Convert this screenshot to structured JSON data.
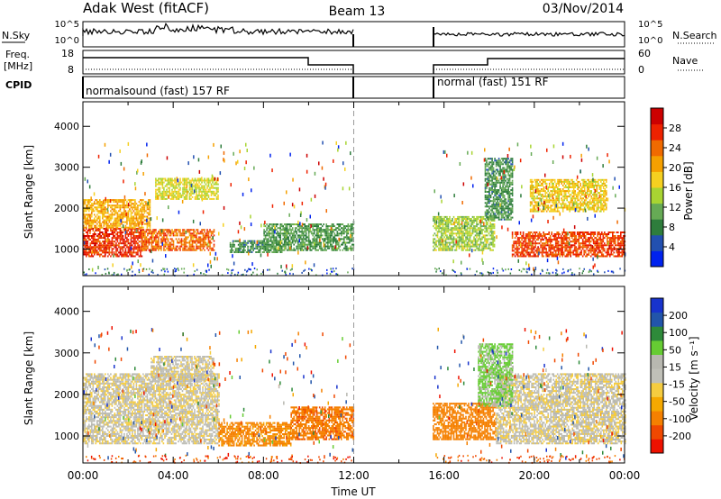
{
  "header": {
    "station": "Adak West (fitACF)",
    "beam": "Beam 13",
    "date": "03/Nov/2014"
  },
  "summary_panels": {
    "nsky_label": "N.Sky",
    "nsky_ticks": [
      "10^5",
      "10^0"
    ],
    "nsearch_label": "N.Search",
    "nsearch_ticks": [
      "10^5",
      "10^0"
    ],
    "freq_label": "Freq.",
    "freq_unit": "[MHz]",
    "freq_ticks": [
      "18",
      "8"
    ],
    "nave_label": "Nave",
    "nave_ticks": [
      "60",
      "0"
    ],
    "cpid_label": "CPID",
    "cpid_left": "normalsound (fast) 157 RF",
    "cpid_right": "normal (fast) 151 RF"
  },
  "colors": {
    "power_scale": [
      "#0022ee",
      "#2250b0",
      "#2e7d3c",
      "#66aa55",
      "#a8d432",
      "#f5d020",
      "#f5a000",
      "#f06a00",
      "#ee2200",
      "#cc0000"
    ],
    "velocity_scale": [
      "#ee1100",
      "#f04800",
      "#f58000",
      "#f5a800",
      "#f5cc40",
      "#c0c0b8",
      "#b8b8b0",
      "#66cc33",
      "#2e8a3a",
      "#2255aa",
      "#1833cc"
    ],
    "ground_scatter": "#bdbdb4",
    "frame": "#000000",
    "boundary_dash": "#9a9a9a"
  },
  "chart_data": [
    {
      "type": "heatmap",
      "panel": "power",
      "ylabel": "Slant Range [km]",
      "ytick_labels": [
        "1000",
        "2000",
        "3000",
        "4000"
      ],
      "ylim": [
        350,
        4600
      ],
      "xlim": [
        0,
        24
      ],
      "colorbar_label": "Power [dB]",
      "colorbar_ticks": [
        "4",
        "8",
        "12",
        "16",
        "20",
        "24",
        "28"
      ],
      "colorbar_range": [
        0,
        32
      ],
      "data_gap": [
        12.0,
        15.5
      ],
      "echo_regions": [
        {
          "t0": 0.0,
          "t1": 2.6,
          "r0": 800,
          "r1": 1500,
          "value": 27
        },
        {
          "t0": 0.0,
          "t1": 3.0,
          "r0": 1500,
          "r1": 2200,
          "value": 20
        },
        {
          "t0": 2.6,
          "t1": 5.8,
          "r0": 950,
          "r1": 1450,
          "value": 24
        },
        {
          "t0": 3.2,
          "t1": 6.0,
          "r0": 2200,
          "r1": 2700,
          "value": 16
        },
        {
          "t0": 6.5,
          "t1": 8.8,
          "r0": 900,
          "r1": 1200,
          "value": 9
        },
        {
          "t0": 8.0,
          "t1": 12.0,
          "r0": 950,
          "r1": 1600,
          "value": 10
        },
        {
          "t0": 15.5,
          "t1": 18.2,
          "r0": 950,
          "r1": 1800,
          "value": 14
        },
        {
          "t0": 17.8,
          "t1": 19.0,
          "r0": 1700,
          "r1": 3200,
          "value": 9
        },
        {
          "t0": 19.0,
          "t1": 24.0,
          "r0": 800,
          "r1": 1400,
          "value": 26
        },
        {
          "t0": 19.8,
          "t1": 23.2,
          "r0": 1900,
          "r1": 2700,
          "value": 18
        }
      ]
    },
    {
      "type": "heatmap",
      "panel": "velocity",
      "ylabel": "Slant Range [km]",
      "ytick_labels": [
        "1000",
        "2000",
        "3000",
        "4000"
      ],
      "ylim": [
        350,
        4600
      ],
      "xlim": [
        0,
        24
      ],
      "xtick_labels": [
        "00:00",
        "04:00",
        "08:00",
        "12:00",
        "16:00",
        "20:00",
        "00:00"
      ],
      "xlabel": "Time UT",
      "colorbar_label": "Velocity [m s⁻¹]",
      "colorbar_ticks": [
        "200",
        "100",
        "50",
        "15",
        "-15",
        "-50",
        "-100",
        "-200"
      ],
      "colorbar_range": [
        -250,
        250
      ],
      "data_gap": [
        12.0,
        15.5
      ],
      "echo_regions": [
        {
          "t0": 0.0,
          "t1": 6.0,
          "r0": 800,
          "r1": 2500,
          "value": 0
        },
        {
          "t0": 3.0,
          "t1": 5.8,
          "r0": 2300,
          "r1": 2900,
          "value": 0
        },
        {
          "t0": 6.0,
          "t1": 9.2,
          "r0": 750,
          "r1": 1300,
          "value": -60
        },
        {
          "t0": 9.2,
          "t1": 12.0,
          "r0": 900,
          "r1": 1700,
          "value": -90
        },
        {
          "t0": 15.5,
          "t1": 18.3,
          "r0": 900,
          "r1": 1800,
          "value": -80
        },
        {
          "t0": 18.3,
          "t1": 24.0,
          "r0": 800,
          "r1": 2500,
          "value": 0
        },
        {
          "t0": 17.5,
          "t1": 19.0,
          "r0": 1700,
          "r1": 3200,
          "value": 20
        }
      ]
    }
  ]
}
